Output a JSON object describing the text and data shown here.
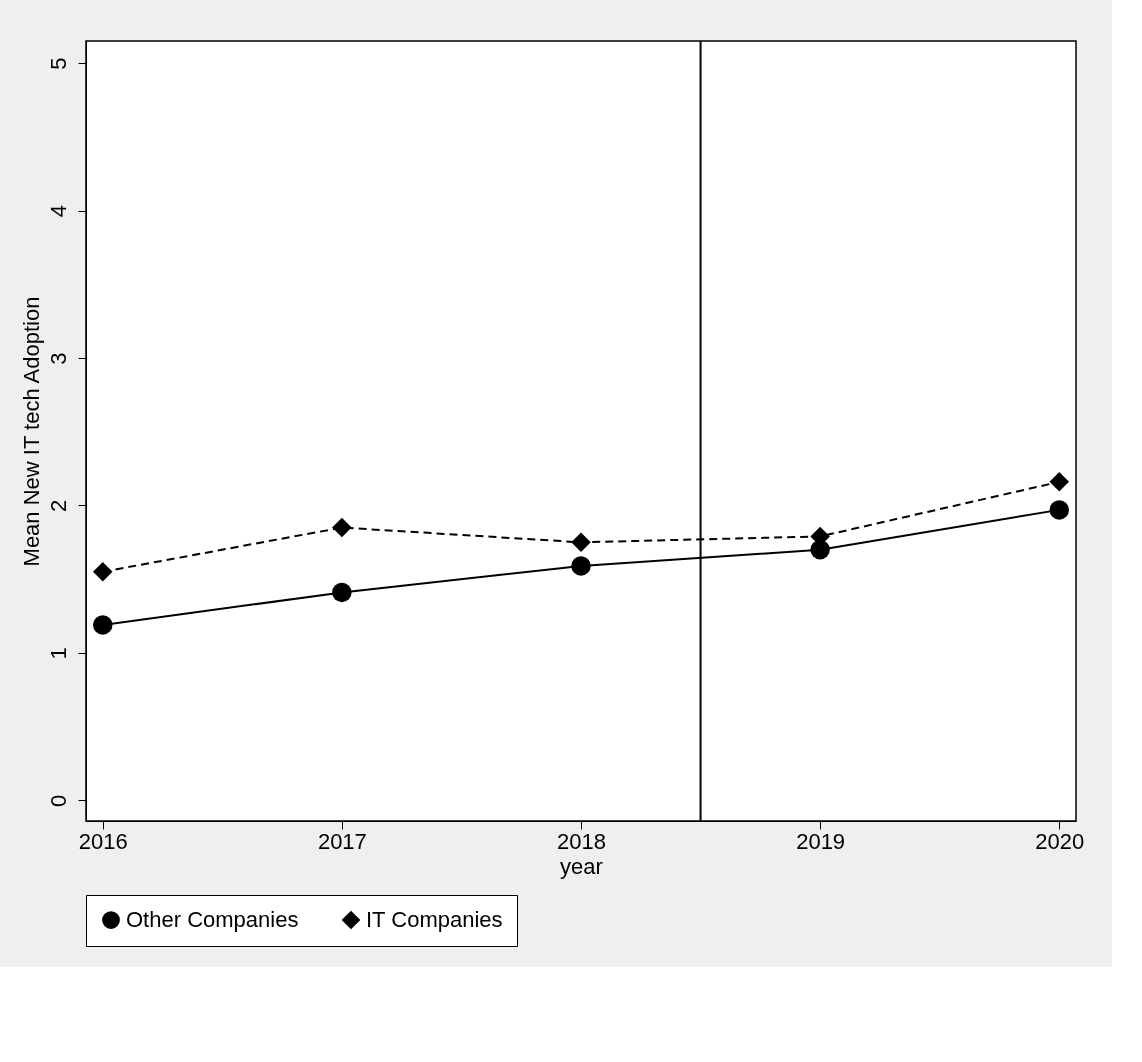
{
  "chart_data": {
    "type": "line",
    "xlabel": "year",
    "ylabel": "Mean New IT tech Adoption",
    "x": [
      2016,
      2017,
      2018,
      2019,
      2020
    ],
    "series": [
      {
        "name": "Other Companies",
        "color": "#000000",
        "marker": "circle",
        "line_style": "solid",
        "values": [
          1.19,
          1.41,
          1.59,
          1.7,
          1.97
        ]
      },
      {
        "name": "IT Companies",
        "color": "#000000",
        "marker": "diamond",
        "line_style": "dashed",
        "values": [
          1.55,
          1.85,
          1.75,
          1.79,
          2.16
        ]
      }
    ],
    "xlim": [
      2015.93,
      2020.07
    ],
    "xticks": [
      2016,
      2017,
      2018,
      2019,
      2020
    ],
    "ylim": [
      -0.14,
      5.15
    ],
    "yticks": [
      0,
      1,
      2,
      3,
      4,
      5
    ],
    "ref_lines": [
      {
        "axis": "x",
        "value": 2018.5,
        "label": null,
        "color": "#000000"
      }
    ],
    "grid": false,
    "legend": "bottom"
  }
}
